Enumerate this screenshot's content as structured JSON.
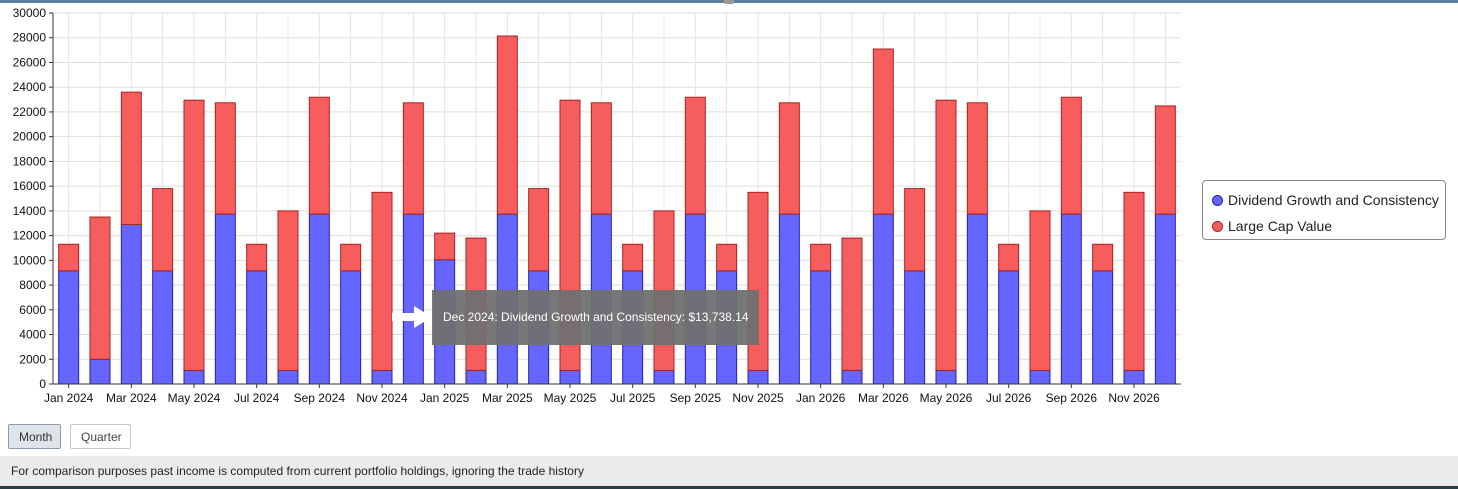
{
  "chart_data": {
    "type": "bar",
    "stacked": true,
    "title": "",
    "xlabel": "",
    "ylabel": "",
    "ylim": [
      0,
      30000
    ],
    "ytick_step": 2000,
    "ytick_labels": [
      "0",
      "2000",
      "4000",
      "6000",
      "8000",
      "10000",
      "12000",
      "14000",
      "16000",
      "18000",
      "20000",
      "22000",
      "24000",
      "26000",
      "28000",
      "30000"
    ],
    "categories": [
      "Jan 2024",
      "Feb 2024",
      "Mar 2024",
      "Apr 2024",
      "May 2024",
      "Jun 2024",
      "Jul 2024",
      "Aug 2024",
      "Sep 2024",
      "Oct 2024",
      "Nov 2024",
      "Dec 2024",
      "Jan 2025",
      "Feb 2025",
      "Mar 2025",
      "Apr 2025",
      "May 2025",
      "Jun 2025",
      "Jul 2025",
      "Aug 2025",
      "Sep 2025",
      "Oct 2025",
      "Nov 2025",
      "Dec 2025",
      "Jan 2026",
      "Feb 2026",
      "Mar 2026",
      "Apr 2026",
      "May 2026",
      "Jun 2026",
      "Jul 2026",
      "Aug 2026",
      "Sep 2026",
      "Oct 2026",
      "Nov 2026",
      "Dec 2026"
    ],
    "xtick_labels": [
      "Jan 2024",
      "Mar 2024",
      "May 2024",
      "Jul 2024",
      "Sep 2024",
      "Nov 2024",
      "Jan 2025",
      "Mar 2025",
      "May 2025",
      "Jul 2025",
      "Sep 2025",
      "Nov 2025",
      "Jan 2026",
      "Mar 2026",
      "May 2026",
      "Jul 2026",
      "Sep 2026",
      "Nov 2026"
    ],
    "series": [
      {
        "name": "Dividend Growth and Consistency",
        "color": "#6666ff",
        "edge": "#2222aa",
        "values": [
          9150,
          2000,
          12900,
          9150,
          1100,
          13738.14,
          9150,
          1100,
          13738.14,
          9150,
          1100,
          13738.14,
          10050,
          1100,
          13738.14,
          9150,
          1100,
          13738.14,
          9150,
          1100,
          13738.14,
          9150,
          1100,
          13738.14,
          9150,
          1100,
          13738.14,
          9150,
          1100,
          13738.14,
          9150,
          1100,
          13738.14,
          9150,
          1100,
          13738.14
        ]
      },
      {
        "name": "Large Cap Value",
        "color": "#f65e5e",
        "edge": "#aa2222",
        "values": [
          2150,
          11500,
          10700,
          6650,
          21850,
          9000,
          2150,
          12900,
          9450,
          2150,
          14400,
          9000,
          2150,
          10700,
          14400,
          6650,
          21850,
          9000,
          2150,
          12900,
          9450,
          2150,
          14400,
          9000,
          2150,
          10700,
          13350,
          6650,
          21850,
          9000,
          2150,
          12900,
          9450,
          2150,
          14400,
          8750
        ]
      }
    ],
    "legend_position": "right",
    "grid": true,
    "tooltip": {
      "text": "Dec 2024: Dividend Growth and Consistency: $13,738.14",
      "category_index": 11,
      "series_index": 0
    }
  },
  "legend": {
    "items": [
      {
        "label": "Dividend Growth and Consistency"
      },
      {
        "label": "Large Cap Value"
      }
    ]
  },
  "controls": {
    "month_label": "Month",
    "quarter_label": "Quarter"
  },
  "footer": {
    "note": "For comparison purposes past income is computed from current portfolio holdings, ignoring the trade history"
  }
}
